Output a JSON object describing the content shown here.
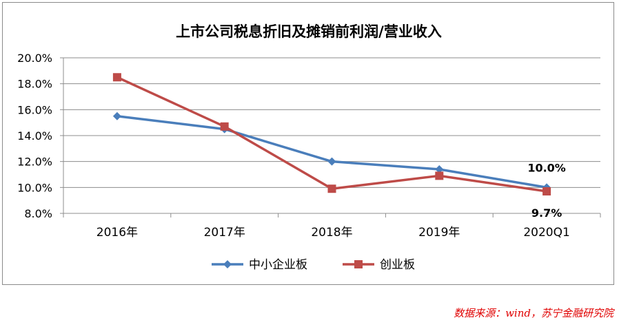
{
  "chart_data": {
    "type": "line",
    "title": "上市公司税息折旧及摊销前利润/营业收入",
    "categories": [
      "2016年",
      "2017年",
      "2018年",
      "2019年",
      "2020Q1"
    ],
    "ylim": [
      8.0,
      20.0
    ],
    "yticks": [
      "8.0%",
      "10.0%",
      "12.0%",
      "14.0%",
      "16.0%",
      "18.0%",
      "20.0%"
    ],
    "grid": true,
    "legend_position": "bottom",
    "series": [
      {
        "name": "中小企业板",
        "color": "#4a7ebb",
        "marker": "diamond",
        "values": [
          15.5,
          14.5,
          12.0,
          11.4,
          10.0
        ]
      },
      {
        "name": "创业板",
        "color": "#be4b48",
        "marker": "square",
        "values": [
          18.5,
          14.7,
          9.9,
          10.9,
          9.7
        ]
      }
    ],
    "annotations": [
      {
        "series": 0,
        "index": 4,
        "text": "10.0%"
      },
      {
        "series": 1,
        "index": 4,
        "text": "9.7%"
      }
    ]
  },
  "source": "数据来源：wind，苏宁金融研究院"
}
